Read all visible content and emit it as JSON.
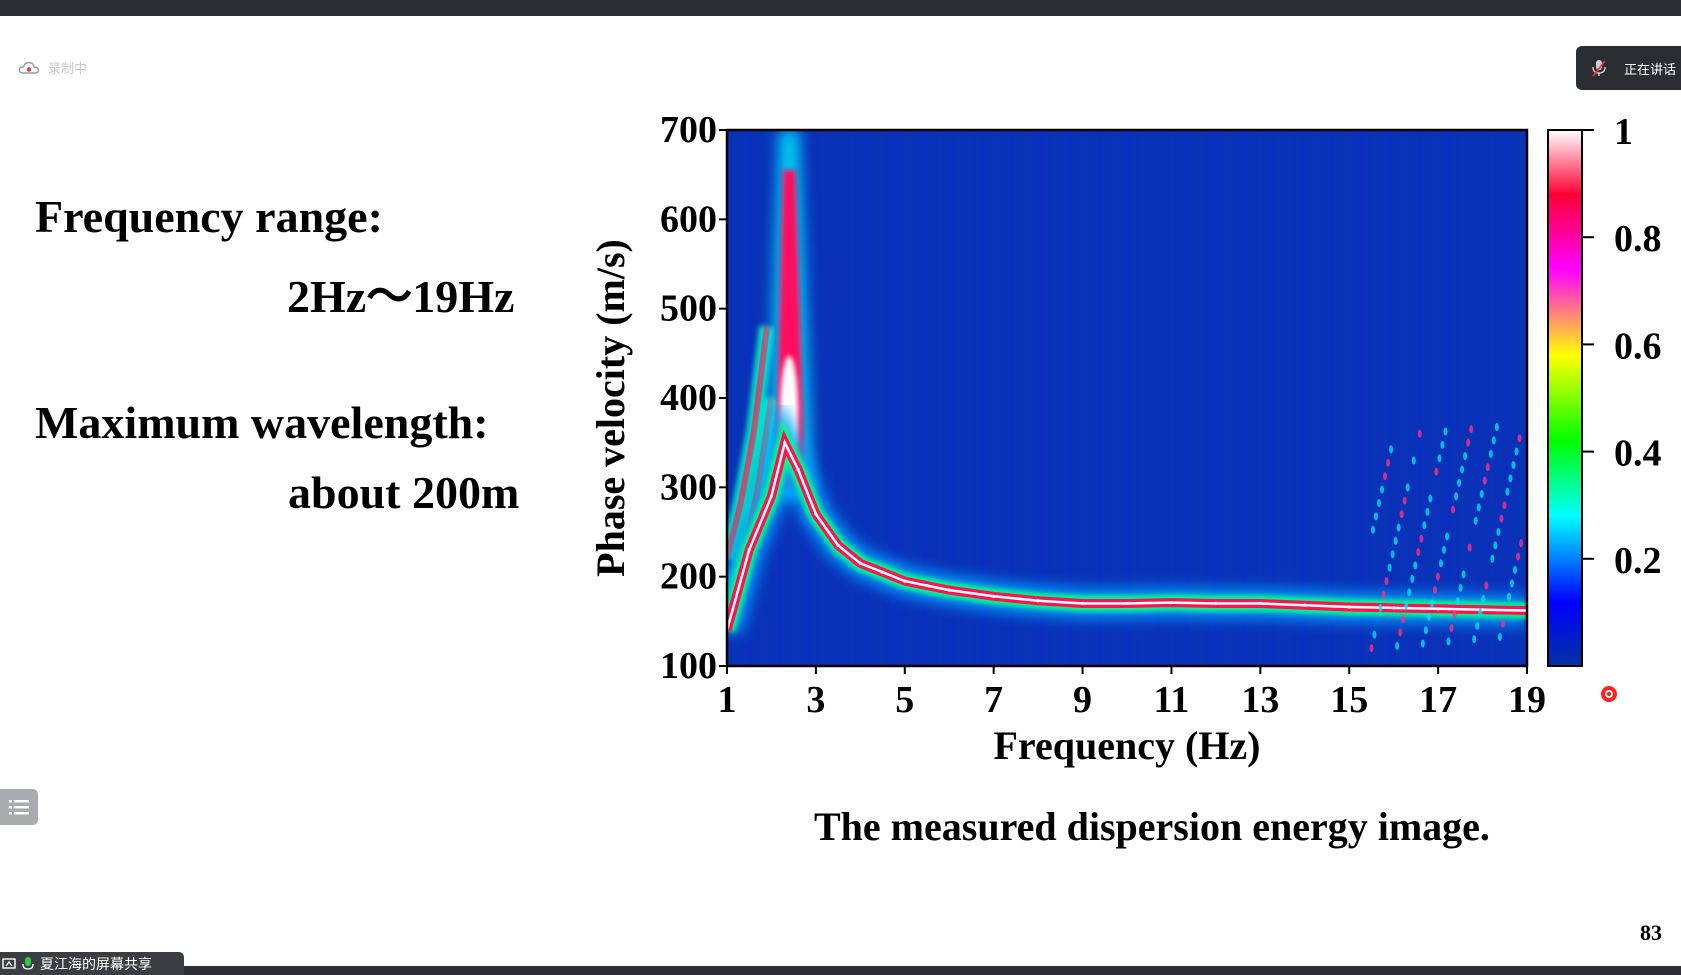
{
  "window": {
    "recording_label": "录制中",
    "speaker_label": "正在讲话",
    "share_label": "夏江海的屏幕共享"
  },
  "slide": {
    "freq_heading": "Frequency range:",
    "freq_value": "2Hz～19Hz",
    "wave_heading": "Maximum wavelength:",
    "wave_value": "about 200m",
    "caption": "The measured dispersion energy image.",
    "page_number": "83"
  },
  "chart_data": {
    "type": "heatmap",
    "title": "",
    "xlabel": "Frequency (Hz)",
    "ylabel": "Phase velocity (m/s)",
    "xlim": [
      1,
      19
    ],
    "ylim": [
      100,
      700
    ],
    "x_ticks": [
      "1",
      "3",
      "5",
      "7",
      "9",
      "11",
      "13",
      "15",
      "17",
      "19"
    ],
    "y_ticks": [
      "700",
      "600",
      "500",
      "400",
      "300",
      "200",
      "100"
    ],
    "colorbar": {
      "range": [
        0,
        1
      ],
      "ticks": [
        "1",
        "0.8",
        "0.6",
        "0.4",
        "0.2"
      ],
      "colormap": [
        "#0033a0",
        "#0000ff",
        "#00ffff",
        "#00ff00",
        "#ffff00",
        "#ff00ff",
        "#ff0033",
        "#ffffff"
      ]
    },
    "background_color": "#0a32b8",
    "dispersion_curve": {
      "x": [
        1.0,
        1.5,
        2.0,
        2.3,
        2.6,
        3.0,
        3.5,
        4.0,
        4.5,
        5.0,
        5.5,
        6.0,
        7.0,
        8.0,
        9.0,
        10.0,
        11.0,
        12.0,
        13.0,
        14.0,
        15.0,
        16.0,
        17.0,
        18.0,
        19.0
      ],
      "y": [
        140,
        230,
        290,
        350,
        320,
        270,
        235,
        215,
        205,
        195,
        190,
        185,
        178,
        173,
        170,
        170,
        171,
        170,
        170,
        168,
        166,
        165,
        164,
        163,
        162
      ],
      "relative_energy": [
        0.7,
        0.8,
        0.9,
        1.0,
        1.0,
        0.95,
        0.9,
        0.9,
        0.9,
        0.9,
        0.88,
        0.86,
        0.84,
        0.82,
        0.8,
        0.8,
        0.8,
        0.8,
        0.78,
        0.76,
        0.75,
        0.74,
        0.72,
        0.7,
        0.68
      ]
    },
    "low_frequency_peak": {
      "x": [
        2.2,
        2.3,
        2.4,
        2.5,
        2.6
      ],
      "y_top": [
        700,
        700,
        700,
        700,
        700
      ],
      "relative_energy": 1.0
    },
    "secondary_branches": [
      {
        "x": [
          1.0,
          1.3,
          1.6,
          1.9
        ],
        "y": [
          220,
          280,
          360,
          480
        ],
        "relative_energy": 0.7
      },
      {
        "x": [
          1.1,
          1.4,
          1.7,
          2.0
        ],
        "y": [
          180,
          230,
          300,
          400
        ],
        "relative_energy": 0.6
      }
    ],
    "legend": "right colorbar",
    "grid": false
  }
}
